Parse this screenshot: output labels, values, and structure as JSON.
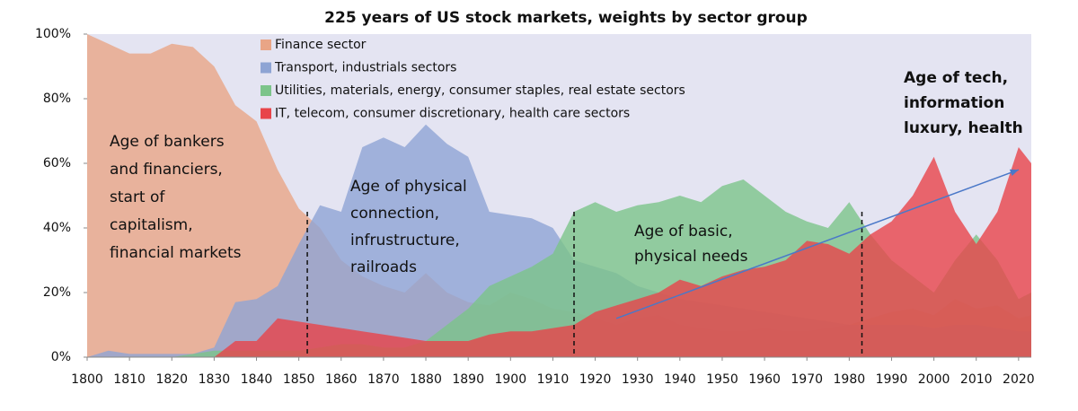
{
  "chart_data": {
    "type": "area",
    "title": "225 years of US stock markets, weights by sector group",
    "x": [
      1800,
      1805,
      1810,
      1815,
      1820,
      1825,
      1830,
      1835,
      1840,
      1845,
      1850,
      1855,
      1860,
      1865,
      1870,
      1875,
      1880,
      1885,
      1890,
      1895,
      1900,
      1905,
      1910,
      1915,
      1920,
      1925,
      1930,
      1935,
      1940,
      1945,
      1950,
      1955,
      1960,
      1965,
      1970,
      1975,
      1980,
      1985,
      1990,
      1995,
      2000,
      2005,
      2010,
      2015,
      2020,
      2023
    ],
    "series": [
      {
        "name": "Finance sector",
        "color": "#e9a586",
        "values": [
          100,
          97,
          94,
          94,
          97,
          96,
          90,
          78,
          73,
          58,
          46,
          40,
          30,
          25,
          22,
          20,
          26,
          20,
          17,
          16,
          20,
          18,
          15,
          14,
          12,
          10,
          12,
          13,
          10,
          9,
          8,
          8,
          9,
          8,
          8,
          9,
          10,
          12,
          14,
          15,
          13,
          18,
          15,
          16,
          12,
          13
        ]
      },
      {
        "name": "Transport, industrials sectors",
        "color": "#8ea4d4",
        "values": [
          0,
          2,
          1,
          1,
          1,
          1,
          3,
          17,
          18,
          22,
          35,
          47,
          45,
          65,
          68,
          65,
          72,
          66,
          62,
          45,
          44,
          43,
          40,
          30,
          28,
          26,
          22,
          20,
          18,
          17,
          16,
          15,
          14,
          13,
          12,
          11,
          10,
          10,
          10,
          10,
          9,
          10,
          10,
          9,
          8,
          8
        ]
      },
      {
        "name": "Utilities, materials, energy, consumer staples, real estate sectors",
        "color": "#7cc48a",
        "values": [
          0,
          0,
          0,
          0,
          0,
          1,
          2,
          2,
          2,
          2,
          2,
          3,
          4,
          4,
          3,
          3,
          5,
          10,
          15,
          22,
          25,
          28,
          32,
          45,
          48,
          45,
          47,
          48,
          50,
          48,
          53,
          55,
          50,
          45,
          42,
          40,
          48,
          38,
          30,
          25,
          20,
          30,
          38,
          30,
          18,
          20
        ]
      },
      {
        "name": "IT, telecom, consumer discretionary, health care sectors",
        "color": "#e8444a",
        "values": [
          0,
          0,
          0,
          0,
          0,
          0,
          0,
          5,
          5,
          12,
          11,
          10,
          9,
          8,
          7,
          6,
          5,
          5,
          5,
          7,
          8,
          8,
          9,
          10,
          14,
          16,
          18,
          20,
          24,
          22,
          25,
          27,
          28,
          30,
          36,
          35,
          32,
          38,
          42,
          50,
          62,
          45,
          35,
          45,
          65,
          60
        ]
      }
    ],
    "annotations": [
      [
        "Age of bankers",
        "and financiers,",
        "start of",
        "capitalism,",
        "financial markets"
      ],
      [
        "Age of physical",
        "connection,",
        "infrustructure,",
        "railroads"
      ],
      [
        "Age of basic,",
        "physical needs"
      ],
      [
        "Age of tech,",
        "information",
        "luxury, health"
      ]
    ],
    "era_lines": [
      1852,
      1915,
      1983
    ],
    "trend_arrow": {
      "x": [
        1925,
        2020
      ],
      "y": [
        12,
        58
      ]
    },
    "xlim": [
      1800,
      2023
    ],
    "ylim": [
      0,
      100
    ],
    "xticks": [
      1800,
      1810,
      1820,
      1830,
      1840,
      1850,
      1860,
      1870,
      1880,
      1890,
      1900,
      1910,
      1920,
      1930,
      1940,
      1950,
      1960,
      1970,
      1980,
      1990,
      2000,
      2010,
      2020
    ],
    "yticks": [
      {
        "value": 0,
        "label": "0%"
      },
      {
        "value": 20,
        "label": "20%"
      },
      {
        "value": 40,
        "label": "40%"
      },
      {
        "value": 60,
        "label": "60%"
      },
      {
        "value": 80,
        "label": "80%"
      },
      {
        "value": 100,
        "label": "100%"
      }
    ],
    "legend": "upper-left"
  }
}
